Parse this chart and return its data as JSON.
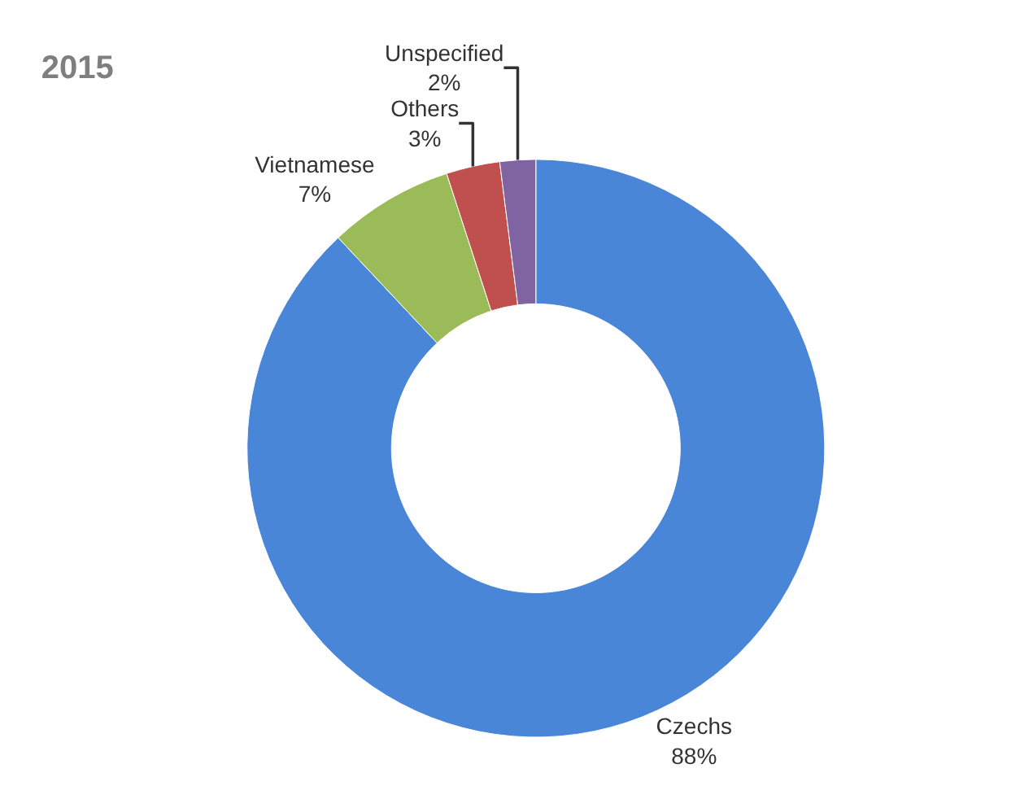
{
  "chart_data": {
    "type": "donut",
    "title": "2015",
    "categories": [
      "Czechs",
      "Vietnamese",
      "Others",
      "Unspecified"
    ],
    "values": [
      88,
      7,
      3,
      2
    ],
    "value_labels": [
      "88%",
      "7%",
      "3%",
      "2%"
    ],
    "colors": [
      "#4a86d8",
      "#9bbb59",
      "#c0504d",
      "#8064a2"
    ],
    "legend": false
  }
}
